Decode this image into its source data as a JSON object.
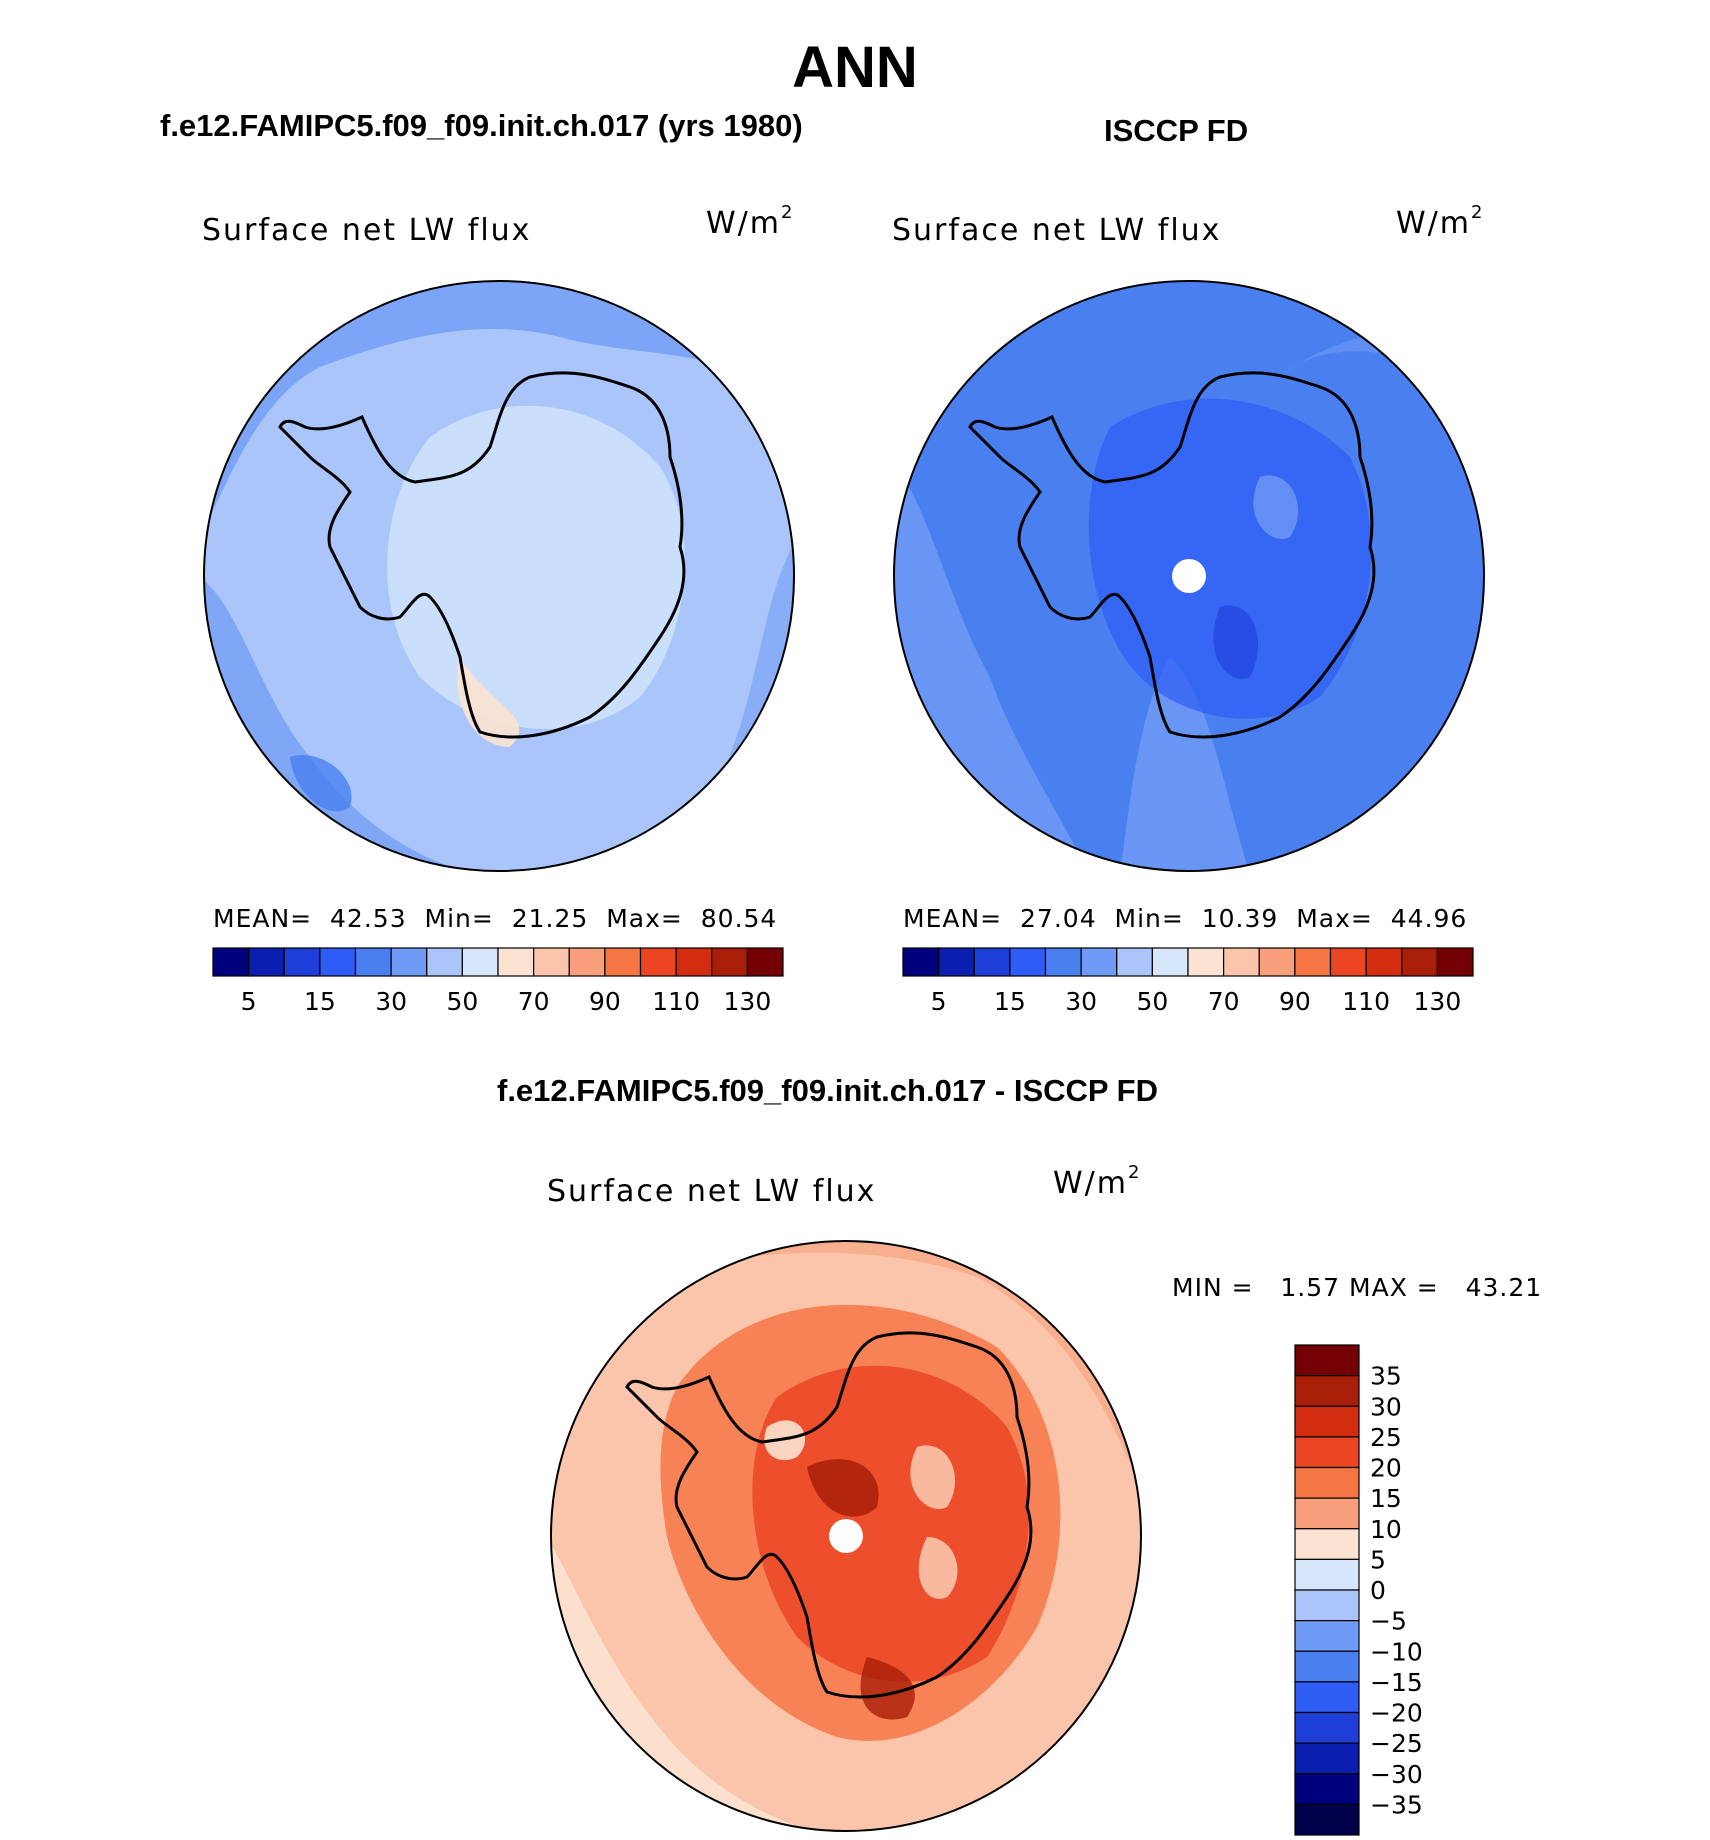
{
  "title": "ANN",
  "units_label": "W/m",
  "units_exponent": "2",
  "panels": [
    {
      "case_title": "f.e12.FAMIPC5.f09_f09.init.ch.017 (yrs 1980)",
      "field": "Surface net LW flux",
      "stats": {
        "mean_label": "MEAN=",
        "mean": "42.53",
        "min_label": "Min=",
        "min": "21.25",
        "max_label": "Max=",
        "max": "80.54"
      },
      "dominant_color": "#9fbef8"
    },
    {
      "case_title": "ISCCP FD",
      "field": "Surface net LW flux",
      "stats": {
        "mean_label": "MEAN=",
        "mean": "27.04",
        "min_label": "Min=",
        "min": "10.39",
        "max_label": "Max=",
        "max": "44.96"
      },
      "dominant_color": "#4a7ff0"
    },
    {
      "case_title": "f.e12.FAMIPC5.f09_f09.init.ch.017 - ISCCP FD",
      "field": "Surface net LW flux",
      "stats": {
        "min_label": "MIN =",
        "min": "1.57",
        "max_label": "MAX =",
        "max": "43.21"
      },
      "dominant_color": "#f48a5a"
    }
  ],
  "abs_colorbar": {
    "colors": [
      "#00007d",
      "#0a1fb0",
      "#1e3ed8",
      "#2d5df5",
      "#4a7ff0",
      "#6f9af5",
      "#a9c5f9",
      "#d6e7fb",
      "#fce3d1",
      "#fac5ab",
      "#f7a07b",
      "#f47645",
      "#eb4524",
      "#d32d0f",
      "#a91e08",
      "#730005"
    ],
    "labels": [
      "5",
      "15",
      "30",
      "50",
      "70",
      "90",
      "110",
      "130"
    ]
  },
  "diff_colorbar": {
    "colors": [
      "#730005",
      "#a91e08",
      "#d32d0f",
      "#eb4524",
      "#f47645",
      "#f7a07b",
      "#fce3d1",
      "#d6e7fb",
      "#a9c5f9",
      "#6f9af5",
      "#4a7ff0",
      "#2d5df5",
      "#1e3ed8",
      "#0a1fb0",
      "#00007d",
      "#00004a"
    ],
    "labels": [
      "35",
      "30",
      "25",
      "20",
      "15",
      "10",
      "5",
      "0",
      "−5",
      "−10",
      "−15",
      "−20",
      "−25",
      "−30",
      "−35"
    ]
  }
}
